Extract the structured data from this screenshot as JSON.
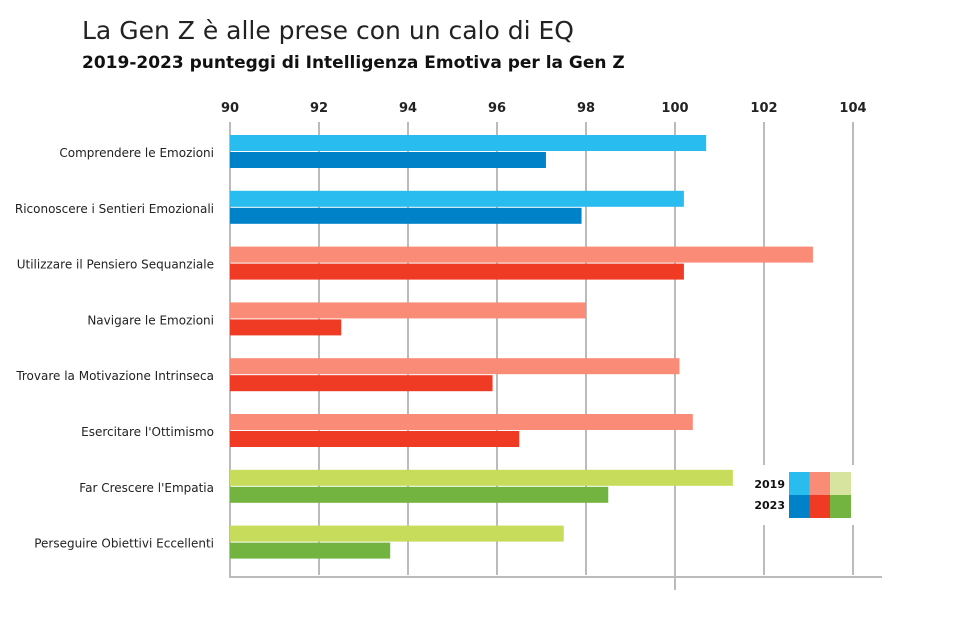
{
  "chart_data": {
    "type": "bar",
    "orientation": "horizontal",
    "title": "La Gen Z è alle prese con un calo di EQ",
    "subtitle": "2019-2023 punteggi di Intelligenza Emotiva per la Gen Z",
    "xlim": [
      90,
      104
    ],
    "ticks": [
      90,
      92,
      94,
      96,
      98,
      100,
      102,
      104
    ],
    "grid": true,
    "legend_placement": "bottom-right",
    "categories": [
      "Comprendere le Emozioni",
      "Riconoscere i Sentieri Emozionali",
      "Utilizzare il Pensiero Sequanziale",
      "Navigare le Emozioni",
      "Trovare la Motivazione Intrinseca",
      "Esercitare l'Ottimismo",
      "Far Crescere l'Empatia",
      "Perseguire Obiettivi Eccellenti"
    ],
    "series": [
      {
        "name": "2019",
        "values": [
          100.7,
          100.2,
          103.1,
          98.0,
          100.1,
          100.4,
          101.3,
          97.5
        ]
      },
      {
        "name": "2023",
        "values": [
          97.1,
          97.9,
          100.2,
          92.5,
          95.9,
          96.5,
          98.5,
          93.6
        ]
      }
    ],
    "category_groups": [
      0,
      0,
      1,
      1,
      1,
      1,
      2,
      2
    ],
    "colors": {
      "2019": [
        "#29BDEF",
        "#F98B77",
        "#C6DC5A"
      ],
      "2023": [
        "#0082C8",
        "#EF3A24",
        "#73B33F"
      ],
      "legend_2019": [
        "#29BDEF",
        "#F98B77",
        "#D6E4A0"
      ]
    }
  }
}
